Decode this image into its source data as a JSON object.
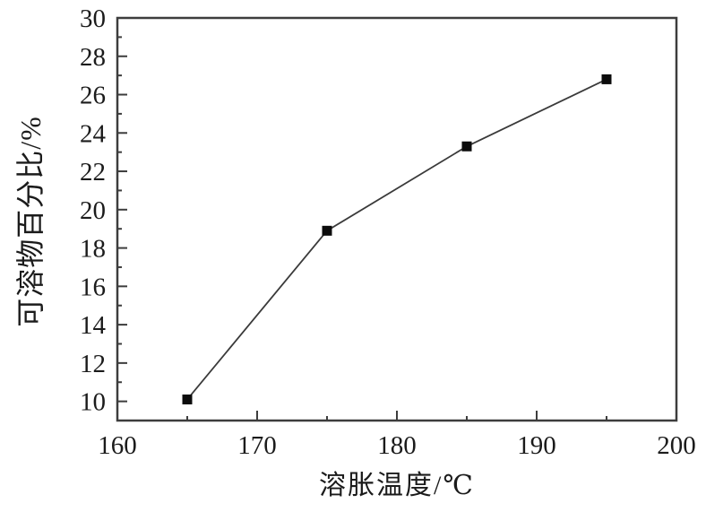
{
  "chart_data": {
    "type": "line",
    "title": "",
    "xlabel": "溶胀温度/℃",
    "ylabel": "可溶物百分比/%",
    "x": [
      165,
      175,
      185,
      195
    ],
    "y": [
      10.1,
      18.9,
      23.3,
      26.8
    ],
    "series": [
      {
        "name": "可溶物百分比",
        "x": [
          165,
          175,
          185,
          195
        ],
        "values": [
          10.1,
          18.9,
          23.3,
          26.8
        ]
      }
    ],
    "xlim": [
      160,
      200
    ],
    "ylim": [
      9,
      30
    ],
    "x_major_ticks": [
      160,
      170,
      180,
      190,
      200
    ],
    "x_minor_ticks": [
      165,
      175,
      185,
      195
    ],
    "y_major_ticks": [
      10,
      12,
      14,
      16,
      18,
      20,
      22,
      24,
      26,
      28,
      30
    ],
    "y_minor_ticks": [
      11,
      13,
      15,
      17,
      19,
      21,
      23,
      25,
      27,
      29
    ],
    "marker": "square",
    "marker_size": 11,
    "grid": false,
    "legend": null,
    "colors": {
      "axis": "#3d3d3d",
      "line": "#3a3a3a",
      "marker": "#0c0c0c",
      "text": "#1b1b1b",
      "background": "#ffffff"
    }
  }
}
